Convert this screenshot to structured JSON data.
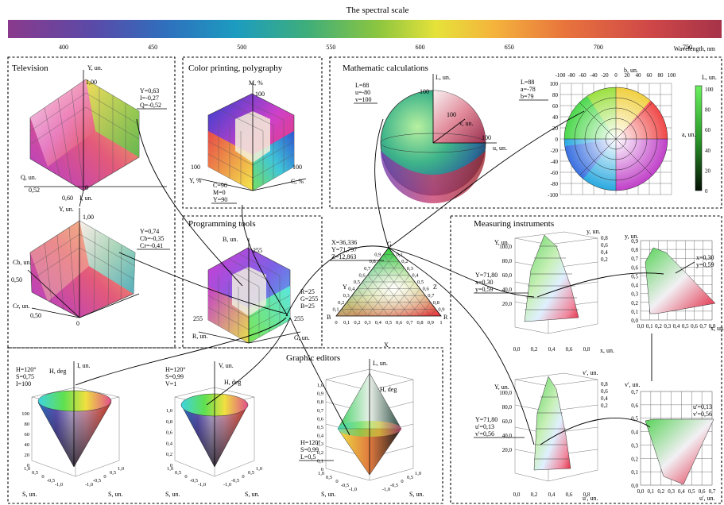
{
  "spectrum": {
    "title": "The spectral scale",
    "ticks": [
      "400",
      "450",
      "500",
      "550",
      "600",
      "650",
      "700",
      "750"
    ],
    "unit": "Wavelength, nm"
  },
  "panels": {
    "television": "Television",
    "printing": "Color printing, polygraphy",
    "math": "Mathematic calculations",
    "programming": "Programming tools",
    "measuring": "Measuring instruments",
    "graphic": "Graphic editors"
  },
  "yiq": {
    "y_axis": "Y, un.",
    "q_axis": "Q, un.",
    "i_axis": "I, un.",
    "y_max": "1,00",
    "q_val": "0,52",
    "i_val": "0,60",
    "origin": "0",
    "annot": [
      "Y=0,63",
      "I=-0,27",
      "Q=-0,52"
    ]
  },
  "ycbcr": {
    "y_axis": "Y, un.",
    "cb_axis": "Cb, un.",
    "cr_axis": "Cr, un.",
    "y_max": "1,00",
    "cb_val": "0,50",
    "cr_val": "0,50",
    "origin": "0",
    "annot": [
      "Y=0,74",
      "Cb=-0,35",
      "Cr=-0,41"
    ]
  },
  "cmy": {
    "m_axis": "M, %",
    "y_axis": "Y, %",
    "c_axis": "C, %",
    "m_max": "100",
    "y_max": "100",
    "c_max": "100",
    "annot": [
      "C=90",
      "M=0",
      "Y=90"
    ]
  },
  "rgb": {
    "b_axis": "B, un.",
    "r_axis": "R, un.",
    "g_axis": "G, un.",
    "b_max": "255",
    "r_max": "255",
    "g_max": "255",
    "annot": [
      "R=25",
      "G=255",
      "B=25"
    ]
  },
  "lab_sphere": {
    "l_axis": "L, un.",
    "u_axis": "u, un.",
    "v_axis": "v, un.",
    "l_max": "100",
    "u_max": "100",
    "v_max": "100",
    "annot": [
      "L=88",
      "u=-80",
      "v=100"
    ]
  },
  "lab_disc": {
    "b_axis": "b, un.",
    "a_axis": "a, un.",
    "l_axis": "L, un.",
    "annot": [
      "L=88",
      "a=-78",
      "b=79"
    ],
    "top_ticks": [
      "-100",
      "-80",
      "-60",
      "-40",
      "-20",
      "0",
      "20",
      "40",
      "60",
      "80",
      "100"
    ],
    "left_ticks": [
      "100",
      "80",
      "60",
      "40",
      "20",
      "0",
      "-20",
      "-40",
      "-60",
      "-80",
      "-100"
    ],
    "bar_ticks": [
      "100",
      "80",
      "60",
      "40",
      "20",
      "0"
    ]
  },
  "xyz_triangle": {
    "annot": [
      "X=36,336",
      "Y=71,797",
      "Z=12,863"
    ],
    "corners": [
      "G",
      "B",
      "R"
    ],
    "axis_labels": [
      "Y",
      "Z",
      "X"
    ],
    "ticks": [
      "0",
      "0,1",
      "0,2",
      "0,3",
      "0,4",
      "0,5",
      "0,6",
      "0,7",
      "0,8",
      "0,9",
      "1"
    ]
  },
  "xyY": {
    "y_axis": "Y, un.",
    "x_axis": "x, un.",
    "yy_axis": "y, un.",
    "annot": [
      "Y=71,80",
      "x=0,30",
      "y=0,59"
    ],
    "big_ticks": [
      "100,0",
      "80,0",
      "60,0",
      "40,0",
      "20,0"
    ],
    "x_ticks": [
      "0,0",
      "0,2",
      "0,4",
      "0,6",
      "0,8"
    ],
    "depth_ticks": [
      "0,8",
      "0,6",
      "0,4",
      "0,2"
    ]
  },
  "xy_chart": {
    "y_axis": "y, un.",
    "x_axis": "x, un.",
    "annot": [
      "x=0,30",
      "y=0,59"
    ],
    "y_ticks": [
      "0,9",
      "0,8",
      "0,7",
      "0,6",
      "0,5",
      "0,4",
      "0,3",
      "0,2",
      "0,1",
      "0,0"
    ],
    "x_ticks": [
      "0,0",
      "0,1",
      "0,2",
      "0,3",
      "0,4",
      "0,5",
      "0,6",
      "0,7",
      "0,8"
    ]
  },
  "luv": {
    "y_axis": "Y, un.",
    "u_axis": "u', un.",
    "v_axis": "v', un.",
    "annot": [
      "Y=71,80",
      "u'=0,13",
      "v'=0,56"
    ],
    "big_ticks": [
      "100,0",
      "80,0",
      "60,0",
      "40,0",
      "20,0"
    ],
    "x_ticks": [
      "0,0",
      "0,2",
      "0,4",
      "0,6",
      "0,8"
    ],
    "depth_ticks": [
      "0,8",
      "0,6",
      "0,4",
      "0,2"
    ]
  },
  "uv_chart": {
    "v_axis": "v', un.",
    "u_axis": "u', un.",
    "annot": [
      "u'=0,13",
      "v'=0,56"
    ],
    "y_ticks": [
      "0,7",
      "0,6",
      "0,5",
      "0,4",
      "0,3",
      "0,2",
      "0,1",
      "0,0"
    ],
    "x_ticks": [
      "0,0",
      "0,1",
      "0,2",
      "0,3",
      "0,4",
      "0,5",
      "0,6",
      "0,7"
    ]
  },
  "hsi": {
    "annot": [
      "H=120°",
      "S=0,75",
      "I=100"
    ],
    "h_axis": "H, deg",
    "i_axis": "I, un.",
    "s_axis": "S, un.",
    "v_ticks": [
      "100",
      "80",
      "60",
      "40",
      "20",
      "0"
    ],
    "base_ticks": [
      "1,0",
      "0,5",
      "0",
      "-0,5",
      "-1,0"
    ]
  },
  "hsv": {
    "annot": [
      "H=120°",
      "S=0,99",
      "V=1"
    ],
    "h_axis": "H, deg",
    "v_axis": "V, un.",
    "s_axis": "S, un.",
    "v_ticks": [
      "1,0",
      "0,8",
      "0,6",
      "0,4",
      "0,2",
      "0"
    ],
    "base_ticks": [
      "1,0",
      "0,5",
      "0",
      "-0,5",
      "-1,0"
    ]
  },
  "hsl": {
    "annot": [
      "H=120°",
      "S=0,99",
      "L=0,5"
    ],
    "h_axis": "H, deg",
    "l_axis": "L, un.",
    "s_axis": "S, un.",
    "v_ticks": [
      "1,0",
      "0,9",
      "0,8",
      "0,7",
      "0,6",
      "0,5",
      "0,4",
      "0,3",
      "0,2",
      "0,1",
      "0"
    ],
    "base_ticks": [
      "1,0",
      "0,5",
      "0",
      "-0,5",
      "-1,0"
    ]
  },
  "colors": {
    "spectrum": [
      "#8a3a8c",
      "#6d4aa0",
      "#3f63b6",
      "#1b8ac4",
      "#20a3a8",
      "#4caf50",
      "#9bc93a",
      "#e8e23a",
      "#f2a73a",
      "#e36a3d",
      "#c9414a",
      "#a93348"
    ]
  }
}
